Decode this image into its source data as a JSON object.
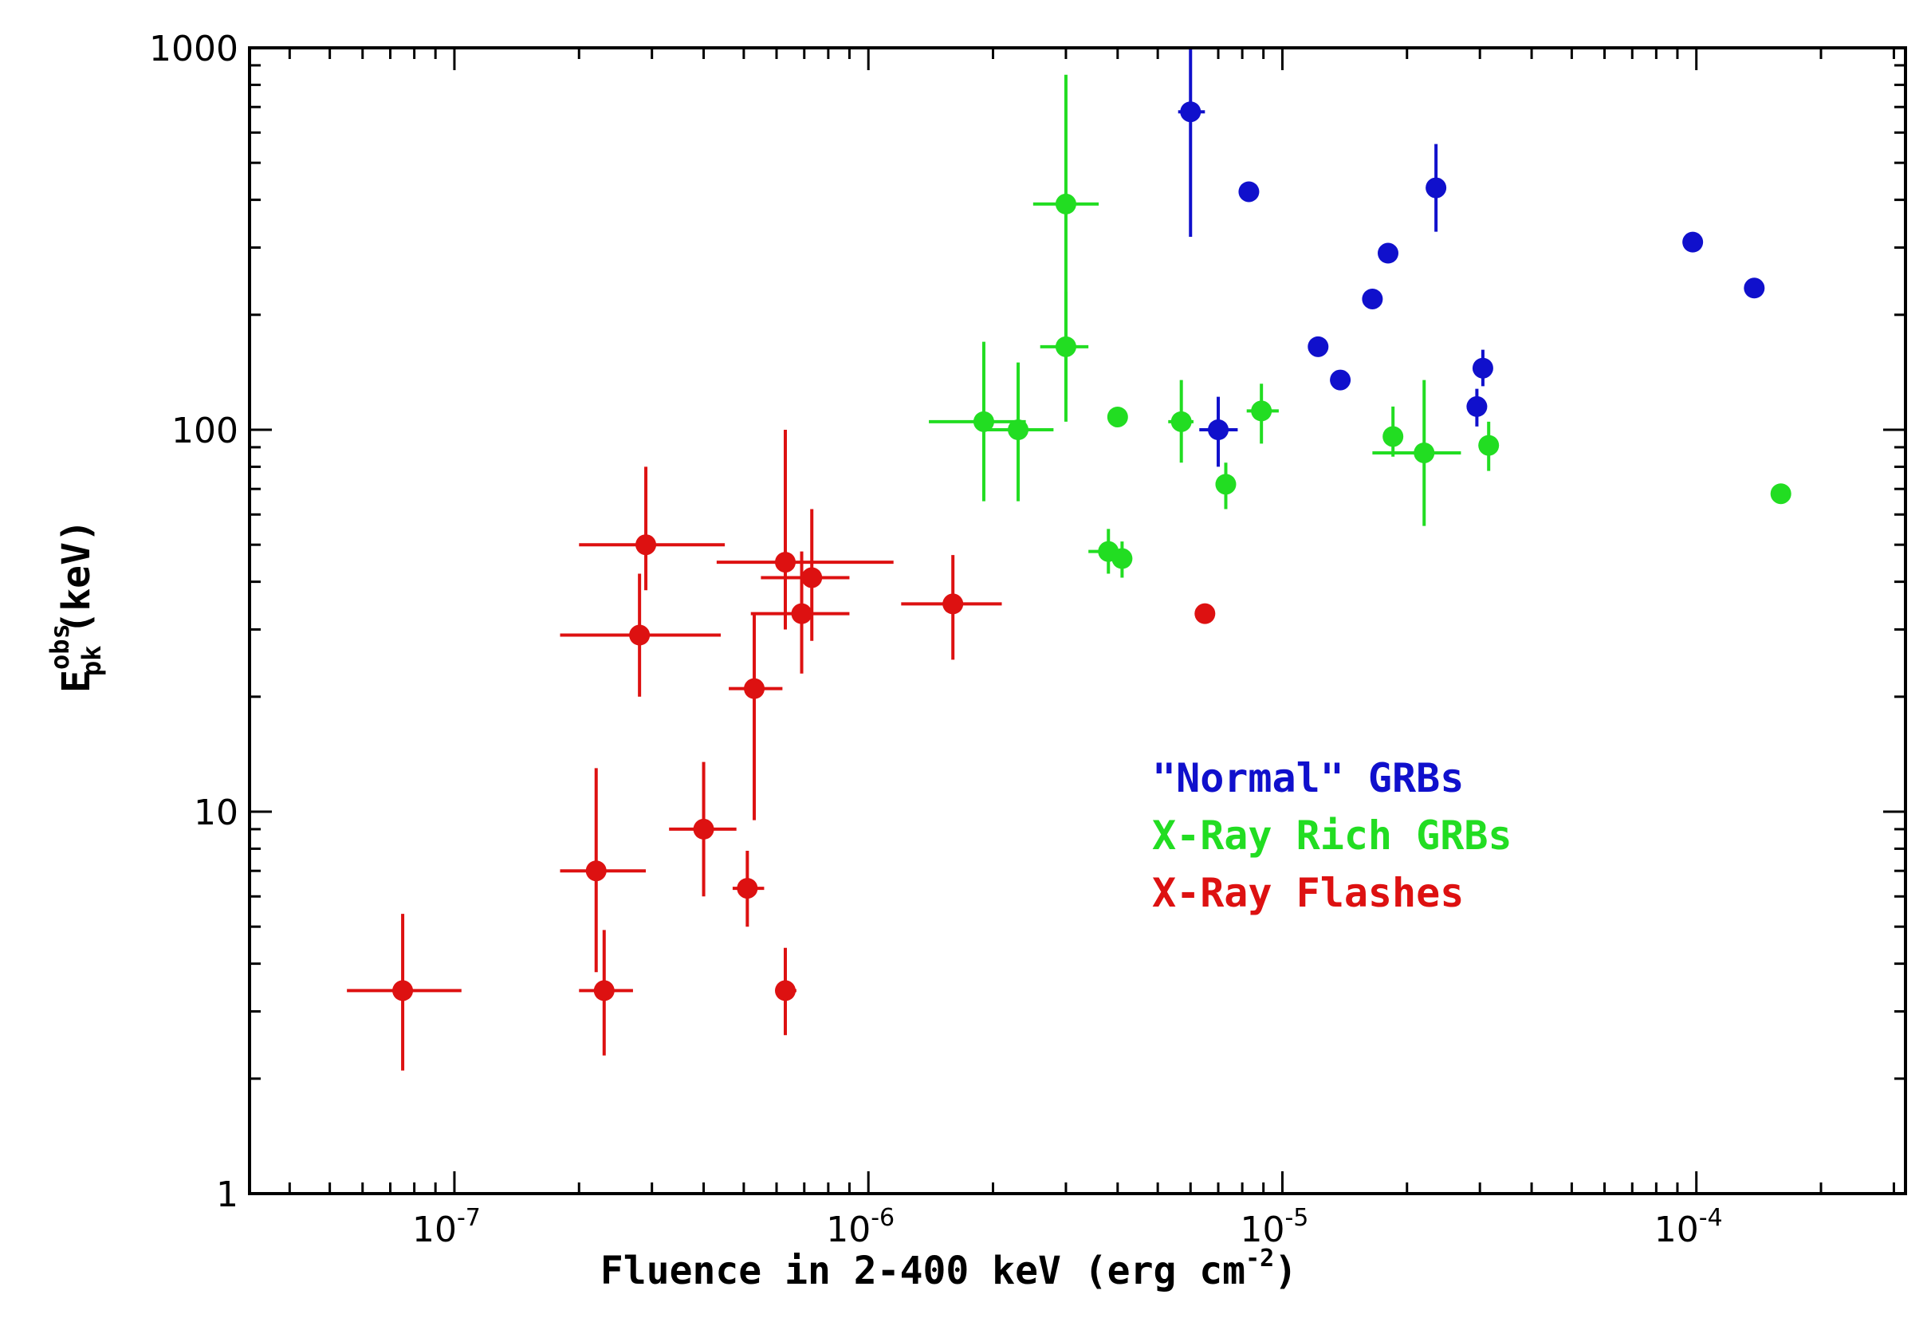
{
  "chart_data": {
    "type": "scatter",
    "title": "",
    "xlabel": "Fluence in 2-400 keV (erg cm",
    "xlabel_exp": "-2",
    "xlabel_close": ")",
    "ylabel_main": "E",
    "ylabel_sup": "obs",
    "ylabel_sub": "pk",
    "ylabel_unit": "(keV)",
    "xscale": "log",
    "yscale": "log",
    "xlim": [
      3.2e-08,
      0.00032
    ],
    "ylim": [
      1,
      1000
    ],
    "x_ticks": [
      {
        "value": 1e-07,
        "base": "10",
        "exp": "-7"
      },
      {
        "value": 1e-06,
        "base": "10",
        "exp": "-6"
      },
      {
        "value": 1e-05,
        "base": "10",
        "exp": "-5"
      },
      {
        "value": 0.0001,
        "base": "10",
        "exp": "-4"
      }
    ],
    "y_ticks": [
      {
        "value": 1,
        "label": "1"
      },
      {
        "value": 10,
        "label": "10"
      },
      {
        "value": 100,
        "label": "100"
      },
      {
        "value": 1000,
        "label": "1000"
      }
    ],
    "legend_position": "center-right",
    "series": [
      {
        "name": "\"Normal\" GRBs",
        "color": "#1010cc",
        "points": [
          {
            "x": 6e-06,
            "y": 680,
            "xlo": 5.6e-06,
            "xhi": 6.5e-06,
            "ylo": 320,
            "yhi": 1000
          },
          {
            "x": 8.3e-06,
            "y": 420,
            "xlo": 8e-06,
            "xhi": 8.7e-06,
            "ylo": 400,
            "yhi": 440
          },
          {
            "x": 2.35e-05,
            "y": 430,
            "xlo": 2.25e-05,
            "xhi": 2.45e-05,
            "ylo": 330,
            "yhi": 560
          },
          {
            "x": 1.8e-05,
            "y": 290,
            "xlo": 1.75e-05,
            "xhi": 1.85e-05,
            "ylo": 280,
            "yhi": 300
          },
          {
            "x": 1.65e-05,
            "y": 220,
            "xlo": 1.6e-05,
            "xhi": 1.7e-05,
            "ylo": 212,
            "yhi": 228
          },
          {
            "x": 1.22e-05,
            "y": 165,
            "xlo": 1.18e-05,
            "xhi": 1.26e-05,
            "ylo": 158,
            "yhi": 172
          },
          {
            "x": 1.38e-05,
            "y": 135,
            "xlo": 1.34e-05,
            "xhi": 1.42e-05,
            "ylo": 130,
            "yhi": 140
          },
          {
            "x": 3.05e-05,
            "y": 145,
            "xlo": 2.95e-05,
            "xhi": 3.15e-05,
            "ylo": 130,
            "yhi": 162
          },
          {
            "x": 2.95e-05,
            "y": 115,
            "xlo": 2.85e-05,
            "xhi": 3.05e-05,
            "ylo": 102,
            "yhi": 128
          },
          {
            "x": 7e-06,
            "y": 100,
            "xlo": 6.3e-06,
            "xhi": 7.8e-06,
            "ylo": 80,
            "yhi": 122
          },
          {
            "x": 9.8e-05,
            "y": 310,
            "xlo": 9.5e-05,
            "xhi": 0.000101,
            "ylo": 300,
            "yhi": 320
          },
          {
            "x": 0.000138,
            "y": 235,
            "xlo": 0.000134,
            "xhi": 0.000142,
            "ylo": 228,
            "yhi": 242
          }
        ]
      },
      {
        "name": "X-Ray Rich GRBs",
        "color": "#22dd22",
        "points": [
          {
            "x": 3e-06,
            "y": 390,
            "xlo": 2.5e-06,
            "xhi": 3.6e-06,
            "ylo": 120,
            "yhi": 850
          },
          {
            "x": 3e-06,
            "y": 165,
            "xlo": 2.6e-06,
            "xhi": 3.4e-06,
            "ylo": 105,
            "yhi": 230
          },
          {
            "x": 1.9e-06,
            "y": 105,
            "xlo": 1.4e-06,
            "xhi": 2.4e-06,
            "ylo": 65,
            "yhi": 170
          },
          {
            "x": 2.3e-06,
            "y": 100,
            "xlo": 1.9e-06,
            "xhi": 2.8e-06,
            "ylo": 65,
            "yhi": 150
          },
          {
            "x": 4e-06,
            "y": 108,
            "xlo": 3.9e-06,
            "xhi": 4.1e-06,
            "ylo": 104,
            "yhi": 112
          },
          {
            "x": 5.7e-06,
            "y": 105,
            "xlo": 5.3e-06,
            "xhi": 6.1e-06,
            "ylo": 82,
            "yhi": 135
          },
          {
            "x": 8.9e-06,
            "y": 112,
            "xlo": 8.2e-06,
            "xhi": 9.8e-06,
            "ylo": 92,
            "yhi": 132
          },
          {
            "x": 7.3e-06,
            "y": 72,
            "xlo": 6.9e-06,
            "xhi": 7.7e-06,
            "ylo": 62,
            "yhi": 82
          },
          {
            "x": 3.8e-06,
            "y": 48,
            "xlo": 3.4e-06,
            "xhi": 4.2e-06,
            "ylo": 42,
            "yhi": 55
          },
          {
            "x": 4.1e-06,
            "y": 46,
            "xlo": 3.9e-06,
            "xhi": 4.3e-06,
            "ylo": 41,
            "yhi": 51
          },
          {
            "x": 1.85e-05,
            "y": 96,
            "xlo": 1.75e-05,
            "xhi": 1.95e-05,
            "ylo": 85,
            "yhi": 115
          },
          {
            "x": 2.2e-05,
            "y": 87,
            "xlo": 1.65e-05,
            "xhi": 2.7e-05,
            "ylo": 56,
            "yhi": 135
          },
          {
            "x": 3.15e-05,
            "y": 91,
            "xlo": 3e-05,
            "xhi": 3.3e-05,
            "ylo": 78,
            "yhi": 105
          },
          {
            "x": 0.00016,
            "y": 68,
            "xlo": 0.000155,
            "xhi": 0.000165,
            "ylo": 65,
            "yhi": 71
          }
        ]
      },
      {
        "name": "X-Ray Flashes",
        "color": "#dd1111",
        "points": [
          {
            "x": 2.9e-07,
            "y": 50,
            "xlo": 2e-07,
            "xhi": 4.5e-07,
            "ylo": 38,
            "yhi": 80
          },
          {
            "x": 2.8e-07,
            "y": 29,
            "xlo": 1.8e-07,
            "xhi": 4.4e-07,
            "ylo": 20,
            "yhi": 42
          },
          {
            "x": 6.3e-07,
            "y": 45,
            "xlo": 4.3e-07,
            "xhi": 1.15e-06,
            "ylo": 30,
            "yhi": 100
          },
          {
            "x": 7.3e-07,
            "y": 41,
            "xlo": 5.5e-07,
            "xhi": 9e-07,
            "ylo": 28,
            "yhi": 62
          },
          {
            "x": 6.9e-07,
            "y": 33,
            "xlo": 5.2e-07,
            "xhi": 9e-07,
            "ylo": 23,
            "yhi": 48
          },
          {
            "x": 5.3e-07,
            "y": 21,
            "xlo": 4.6e-07,
            "xhi": 6.2e-07,
            "ylo": 9.5,
            "yhi": 33
          },
          {
            "x": 1.6e-06,
            "y": 35,
            "xlo": 1.2e-06,
            "xhi": 2.1e-06,
            "ylo": 25,
            "yhi": 47
          },
          {
            "x": 6.5e-06,
            "y": 33,
            "xlo": 6.3e-06,
            "xhi": 6.7e-06,
            "ylo": 31.5,
            "yhi": 34.5
          },
          {
            "x": 4e-07,
            "y": 9,
            "xlo": 3.3e-07,
            "xhi": 4.8e-07,
            "ylo": 6,
            "yhi": 13.5
          },
          {
            "x": 2.2e-07,
            "y": 7,
            "xlo": 1.8e-07,
            "xhi": 2.9e-07,
            "ylo": 3.8,
            "yhi": 13
          },
          {
            "x": 5.1e-07,
            "y": 6.3,
            "xlo": 4.7e-07,
            "xhi": 5.6e-07,
            "ylo": 5.0,
            "yhi": 7.9
          },
          {
            "x": 2.3e-07,
            "y": 3.4,
            "xlo": 2e-07,
            "xhi": 2.7e-07,
            "ylo": 2.3,
            "yhi": 4.9
          },
          {
            "x": 6.3e-07,
            "y": 3.4,
            "xlo": 6e-07,
            "xhi": 6.7e-07,
            "ylo": 2.6,
            "yhi": 4.4
          },
          {
            "x": 7.5e-08,
            "y": 3.4,
            "xlo": 5.5e-08,
            "xhi": 1.04e-07,
            "ylo": 2.1,
            "yhi": 5.4
          }
        ]
      }
    ]
  }
}
